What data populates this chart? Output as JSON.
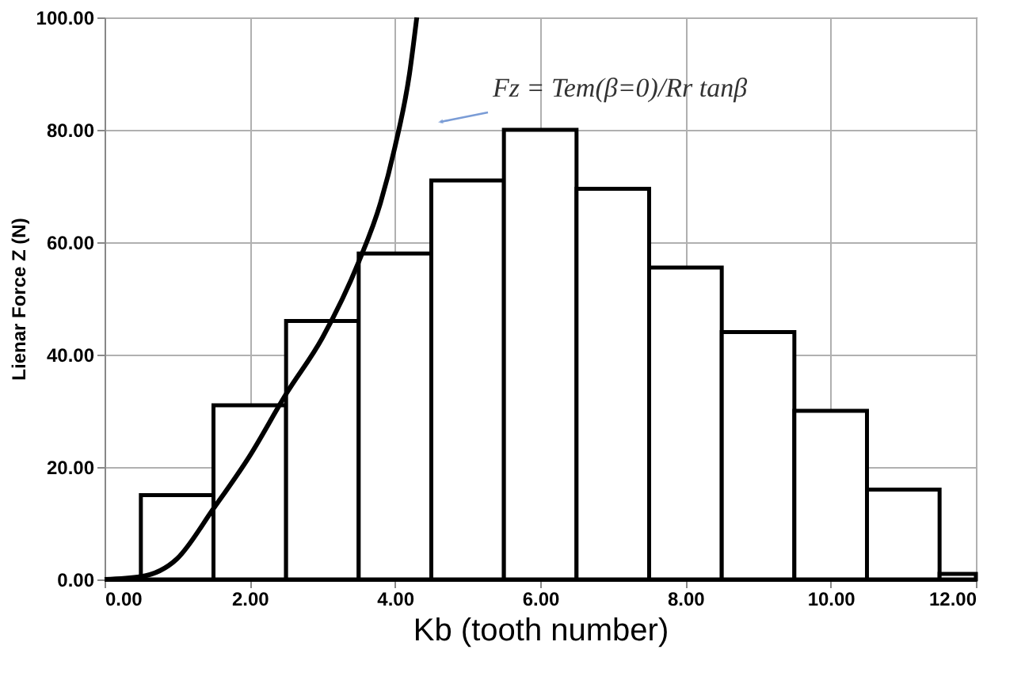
{
  "chart_data": {
    "type": "histogram",
    "xlabel": "Kb (tooth number)",
    "ylabel": "Lienar Force Z (N)",
    "series": [
      {
        "color": "#000000",
        "bins": [
          0.5,
          1.5,
          2.5,
          3.5,
          4.5,
          5.5,
          6.5,
          7.5,
          8.5,
          9.5,
          10.5,
          11.5,
          12.0
        ],
        "values": [
          15,
          31,
          46,
          58,
          71,
          80,
          69.5,
          55.5,
          44,
          30,
          16,
          1
        ]
      },
      {
        "type": "line",
        "color": "#000000",
        "x": [
          0,
          0.5,
          1.0,
          1.5,
          2.0,
          2.5,
          3.0,
          3.5,
          3.8,
          4.0,
          4.2,
          4.3
        ],
        "values": [
          0,
          0.5,
          3.7,
          12.6,
          22,
          33,
          43,
          56.5,
          67,
          77,
          90,
          100
        ]
      }
    ],
    "annotations": [
      "Fz = Tem(β=0)/Rr tanβ"
    ],
    "xlim": [
      0,
      12
    ],
    "ylim": [
      0,
      100
    ],
    "xticks": [
      {
        "value": 0,
        "label": "0.00"
      },
      {
        "value": 2,
        "label": "2.00"
      },
      {
        "value": 4,
        "label": "4.00"
      },
      {
        "value": 6,
        "label": "6.00"
      },
      {
        "value": 8,
        "label": "8.00"
      },
      {
        "value": 10,
        "label": "10.00"
      },
      {
        "value": 12,
        "label": "12.00"
      }
    ],
    "yticks": [
      {
        "value": 0,
        "label": "0.00"
      },
      {
        "value": 20,
        "label": "20.00"
      },
      {
        "value": 40,
        "label": "40.00"
      },
      {
        "value": 60,
        "label": "60.00"
      },
      {
        "value": 80,
        "label": "80.00"
      },
      {
        "value": 100,
        "label": "100.00"
      }
    ],
    "grid": true
  }
}
